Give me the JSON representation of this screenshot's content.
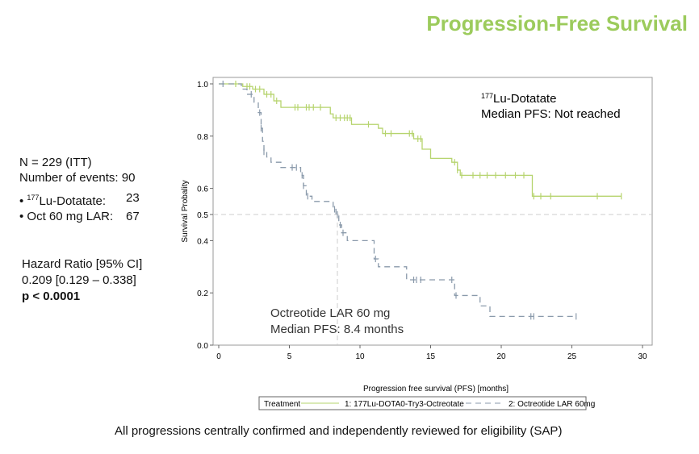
{
  "title": "Progression-Free Survival",
  "summary": {
    "n": "N = 229 (ITT)",
    "events": "Number of events: 90",
    "arms": [
      {
        "sup": "177",
        "label": "Lu-Dotatate:",
        "value": "23"
      },
      {
        "sup": "",
        "label": "Oct 60 mg LAR:",
        "value": "67"
      }
    ]
  },
  "hazard": {
    "label": "Hazard Ratio [95% CI]",
    "value": "0.209  [0.129 – 0.338]",
    "p": "p < 0.0001"
  },
  "footer": "All progressions centrally confirmed and independently reviewed for eligibility (SAP)",
  "chart_data": {
    "type": "line",
    "subtype": "kaplan-meier step",
    "xlabel": "Progression free survival (PFS) [months]",
    "ylabel": "Survival Probality",
    "xlim": [
      0,
      30
    ],
    "ylim": [
      0,
      1
    ],
    "xticks": [
      "0",
      "5",
      "10",
      "15",
      "20",
      "25",
      "30"
    ],
    "yticks": [
      "0.0",
      "0.2",
      "0.4",
      "0.5",
      "0.6",
      "0.8",
      "1.0"
    ],
    "reference_lines": {
      "y": 0.5,
      "x_median_octreotide": 8.4
    },
    "legend": {
      "title": "Treatment",
      "placement": "bottom"
    },
    "annotations": {
      "lu_sup": "177",
      "lu_name": "Lu-Dotatate",
      "lu_median": "Median PFS: Not reached",
      "oct_name": "Octreotide LAR 60 mg",
      "oct_median": "Median PFS: 8.4 months"
    },
    "series": [
      {
        "name": "1: 177Lu-DOTA0-Try3-Octreotate",
        "color": "#b6d46e",
        "dash": false,
        "steps": [
          [
            0,
            1.0
          ],
          [
            1.7,
            0.99
          ],
          [
            2.4,
            0.98
          ],
          [
            3.2,
            0.96
          ],
          [
            3.9,
            0.935
          ],
          [
            4.4,
            0.91
          ],
          [
            7.9,
            0.885
          ],
          [
            8.1,
            0.87
          ],
          [
            9.4,
            0.845
          ],
          [
            11.3,
            0.83
          ],
          [
            11.6,
            0.81
          ],
          [
            13.8,
            0.79
          ],
          [
            14.4,
            0.75
          ],
          [
            15.0,
            0.715
          ],
          [
            16.5,
            0.7
          ],
          [
            16.9,
            0.67
          ],
          [
            17.1,
            0.65
          ],
          [
            22.2,
            0.57
          ],
          [
            28.5,
            0.57
          ]
        ],
        "censored": [
          1.2,
          2.0,
          2.2,
          2.6,
          2.9,
          3.4,
          3.7,
          4.1,
          5.4,
          5.6,
          6.2,
          6.4,
          6.7,
          7.2,
          8.3,
          8.6,
          8.9,
          9.1,
          9.3,
          10.6,
          11.8,
          12.2,
          13.5,
          13.7,
          14.1,
          14.3,
          16.7,
          16.9,
          17.2,
          18.0,
          18.5,
          19.0,
          19.6,
          20.3,
          21.0,
          21.6,
          22.3,
          22.8,
          23.5,
          26.8,
          28.5
        ]
      },
      {
        "name": "2: Octreotide LAR 60mg",
        "color": "#8a9aab",
        "dash": true,
        "steps": [
          [
            0,
            1.0
          ],
          [
            1.6,
            0.98
          ],
          [
            2.0,
            0.96
          ],
          [
            2.5,
            0.93
          ],
          [
            2.8,
            0.89
          ],
          [
            3.0,
            0.83
          ],
          [
            3.1,
            0.78
          ],
          [
            3.2,
            0.74
          ],
          [
            3.4,
            0.72
          ],
          [
            3.7,
            0.7
          ],
          [
            4.4,
            0.68
          ],
          [
            5.8,
            0.65
          ],
          [
            6.0,
            0.61
          ],
          [
            6.2,
            0.57
          ],
          [
            6.6,
            0.55
          ],
          [
            8.1,
            0.52
          ],
          [
            8.3,
            0.5
          ],
          [
            8.5,
            0.46
          ],
          [
            8.7,
            0.43
          ],
          [
            9.1,
            0.4
          ],
          [
            11.0,
            0.33
          ],
          [
            11.3,
            0.3
          ],
          [
            13.3,
            0.25
          ],
          [
            16.7,
            0.19
          ],
          [
            18.5,
            0.15
          ],
          [
            19.2,
            0.11
          ],
          [
            25.3,
            0.11
          ]
        ],
        "censored": [
          0.3,
          2.3,
          2.9,
          3.0,
          3.2,
          5.2,
          5.5,
          5.9,
          6.0,
          6.3,
          8.2,
          8.4,
          8.6,
          8.8,
          11.1,
          13.8,
          14.0,
          14.3,
          16.5,
          16.8,
          22.1,
          22.3,
          25.3
        ]
      }
    ]
  }
}
